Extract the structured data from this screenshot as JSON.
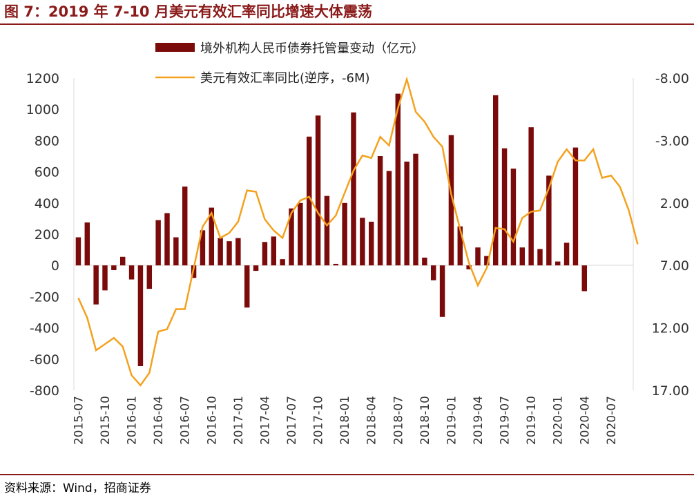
{
  "figure": {
    "title": "图 7：2019 年 7-10 月美元有效汇率同比增速大体震荡",
    "source": "资料来源：Wind，招商证券"
  },
  "colors": {
    "bar": "#7b0a0a",
    "line": "#f4a11d",
    "accent": "#8b1a1a"
  },
  "chart_data": {
    "type": "bar+line",
    "title": "",
    "legend": [
      "境外机构人民币债券托管量变动（亿元）",
      "美元有效汇率同比(逆序，-6M)"
    ],
    "x_tick_labels": [
      "2015-07",
      "2015-10",
      "2016-01",
      "2016-04",
      "2016-07",
      "2016-10",
      "2017-01",
      "2017-04",
      "2017-07",
      "2017-10",
      "2018-01",
      "2018-04",
      "2018-07",
      "2018-10",
      "2019-01",
      "2019-04",
      "2019-07",
      "2019-10",
      "2020-01",
      "2020-04",
      "2020-07"
    ],
    "y_left": {
      "min": -800,
      "max": 1200,
      "step": 200,
      "ticks": [
        "1200",
        "1000",
        "800",
        "600",
        "400",
        "200",
        "0",
        "-200",
        "-400",
        "-600",
        "-800"
      ]
    },
    "y_right": {
      "min": -8,
      "max": 17,
      "inverted": true,
      "ticks": [
        "-8.00",
        "-3.00",
        "2.00",
        "7.00",
        "12.00",
        "17.00"
      ]
    },
    "series": [
      {
        "name": "境外机构人民币债券托管量变动（亿元）",
        "type": "bar",
        "axis": "left",
        "values": [
          180,
          275,
          -250,
          -160,
          -30,
          55,
          -90,
          -645,
          -150,
          290,
          335,
          180,
          505,
          -80,
          225,
          370,
          175,
          155,
          175,
          -270,
          -35,
          150,
          185,
          40,
          365,
          400,
          825,
          960,
          445,
          10,
          400,
          980,
          305,
          280,
          700,
          605,
          1100,
          665,
          715,
          50,
          -95,
          -330,
          835,
          250,
          -25,
          115,
          60,
          1090,
          750,
          620,
          115,
          885,
          105,
          575,
          25,
          145,
          755,
          -165,
          0,
          0,
          0,
          0,
          0
        ]
      },
      {
        "name": "美元有效汇率同比(逆序，-6M)",
        "type": "line",
        "axis": "right",
        "points": [
          [
            0,
            9.6
          ],
          [
            1,
            11.2
          ],
          [
            2,
            13.8
          ],
          [
            3,
            13.3
          ],
          [
            4,
            12.8
          ],
          [
            5,
            13.5
          ],
          [
            6,
            15.8
          ],
          [
            7,
            16.6
          ],
          [
            8,
            15.6
          ],
          [
            9,
            12.3
          ],
          [
            10,
            12.1
          ],
          [
            11,
            10.5
          ],
          [
            12,
            10.5
          ],
          [
            13,
            7.2
          ],
          [
            14,
            3.9
          ],
          [
            15,
            2.8
          ],
          [
            16,
            4.8
          ],
          [
            17,
            4.4
          ],
          [
            18,
            3.5
          ],
          [
            19,
            1.0
          ],
          [
            20,
            1.1
          ],
          [
            21,
            3.3
          ],
          [
            22,
            4.2
          ],
          [
            23,
            4.8
          ],
          [
            24,
            2.8
          ],
          [
            25,
            1.8
          ],
          [
            26,
            1.5
          ],
          [
            27,
            2.8
          ],
          [
            28,
            3.8
          ],
          [
            29,
            3.0
          ],
          [
            30,
            1.2
          ],
          [
            31,
            -0.6
          ],
          [
            32,
            -1.8
          ],
          [
            33,
            -1.6
          ],
          [
            34,
            -3.3
          ],
          [
            35,
            -2.6
          ],
          [
            36,
            -5.6
          ],
          [
            37,
            -7.9
          ],
          [
            38,
            -5.3
          ],
          [
            39,
            -4.5
          ],
          [
            40,
            -3.3
          ],
          [
            41,
            -2.5
          ],
          [
            42,
            1.3
          ],
          [
            43,
            4.1
          ],
          [
            44,
            6.8
          ],
          [
            45,
            8.6
          ],
          [
            46,
            7.2
          ],
          [
            47,
            4.0
          ],
          [
            48,
            4.1
          ],
          [
            49,
            5.1
          ],
          [
            50,
            3.2
          ],
          [
            51,
            2.7
          ],
          [
            52,
            2.6
          ],
          [
            53,
            0.8
          ],
          [
            54,
            -1.3
          ],
          [
            55,
            -2.3
          ],
          [
            56,
            -1.4
          ],
          [
            57,
            -1.4
          ],
          [
            58,
            -2.3
          ],
          [
            59,
            0.0
          ],
          [
            60,
            -0.2
          ],
          [
            61,
            0.7
          ],
          [
            62,
            2.6
          ],
          [
            63,
            5.3
          ]
        ]
      }
    ]
  }
}
